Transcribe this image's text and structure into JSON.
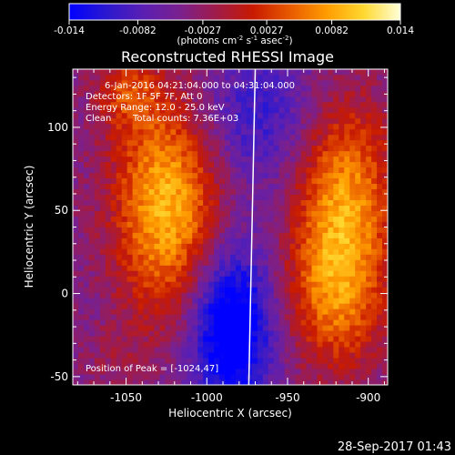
{
  "figure": {
    "colorbar": {
      "ticks": [
        "-0.014",
        "-0.0082",
        "-0.0027",
        "0.0027",
        "0.0082",
        "0.014"
      ],
      "unit_parts": [
        "(photons cm",
        "-2",
        " s",
        "-1",
        " asec",
        "-2",
        ")"
      ]
    },
    "title": "Reconstructed RHESSI Image",
    "info": {
      "time_range": "6-Jan-2016 04:21:04.000 to 04:31:04.000",
      "detectors": "Detectors: 1F 5F 7F, Att 0",
      "energy": "Energy Range: 12.0 - 25.0 keV",
      "method": "Clean",
      "counts": "Total counts: 7.36E+03"
    },
    "peak_text": "Position of Peak = [-1024,47]",
    "timestamp": "28-Sep-2017 01:43"
  },
  "chart_data": {
    "type": "heatmap",
    "title": "Reconstructed RHESSI Image",
    "xlabel": "Heliocentric X (arcsec)",
    "ylabel": "Heliocentric Y (arcsec)",
    "xlim": [
      -1083,
      -888
    ],
    "ylim": [
      -55,
      135
    ],
    "x_ticks": [
      -1050,
      -1000,
      -950,
      -900
    ],
    "y_ticks": [
      -50,
      0,
      50,
      100
    ],
    "tick_labels_x": [
      "-1050",
      "-1000",
      "-950",
      "-900"
    ],
    "tick_labels_y": [
      "-50",
      "0",
      "50",
      "100"
    ],
    "colorbar_range": [
      -0.014,
      0.014
    ],
    "colormap": [
      "#0000ff",
      "#2a18d0",
      "#5a1fb3",
      "#7a208e",
      "#a01b49",
      "#c81a00",
      "#e85a00",
      "#ff9c00",
      "#ffd830",
      "#ffffd8"
    ],
    "peak_position": [
      -1024,
      47
    ],
    "limb_line": {
      "x_top": -970,
      "x_bottom": -974,
      "color": "#ffffff"
    },
    "sources": [
      {
        "x": -1024,
        "y": 54,
        "sx": 24,
        "sy": 48,
        "amp": 0.014
      },
      {
        "x": -1050,
        "y": 122,
        "sx": 14,
        "sy": 16,
        "amp": 0.006
      },
      {
        "x": -915,
        "y": 65,
        "sx": 22,
        "sy": 40,
        "amp": 0.011
      },
      {
        "x": -920,
        "y": 0,
        "sx": 22,
        "sy": 34,
        "amp": 0.01
      },
      {
        "x": -1060,
        "y": -40,
        "sx": 14,
        "sy": 14,
        "amp": 0.002
      },
      {
        "x": -985,
        "y": -20,
        "sx": 18,
        "sy": 35,
        "amp": -0.014
      },
      {
        "x": -970,
        "y": 105,
        "sx": 30,
        "sy": 30,
        "amp": -0.006
      }
    ],
    "background_level": -0.0045
  }
}
